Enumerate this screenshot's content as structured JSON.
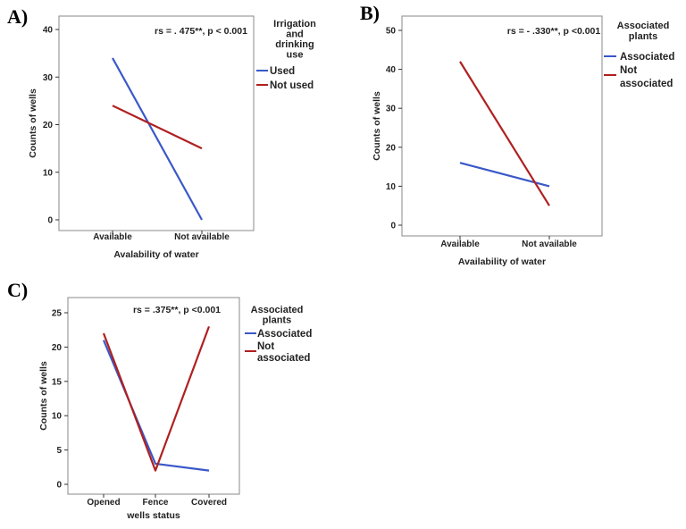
{
  "colors": {
    "blue": "#3a58c8",
    "red": "#b02020",
    "axis": "#333333",
    "frame": "#888888"
  },
  "chart_data": [
    {
      "panel": "A)",
      "type": "line",
      "categories": [
        "Available",
        "Not available"
      ],
      "series": [
        {
          "name": "Used",
          "color": "blue",
          "values": [
            34,
            0
          ]
        },
        {
          "name": "Not used",
          "color": "red",
          "values": [
            24,
            15
          ]
        }
      ],
      "ylim": [
        0,
        40
      ],
      "yticks": [
        "0",
        "10",
        "20",
        "30",
        "40"
      ],
      "xlabel": "Avalability of water",
      "ylabel": "Counts of wells",
      "annotation": "rs = . 475**, p < 0.001",
      "legend_title": [
        "Irrigation",
        "and",
        "drinking",
        "use"
      ]
    },
    {
      "panel": "B)",
      "type": "line",
      "categories": [
        "Available",
        "Not available"
      ],
      "series": [
        {
          "name": "Associated",
          "color": "blue",
          "values": [
            16,
            10
          ]
        },
        {
          "name": "Not associated",
          "label_lines": [
            "Not",
            "associated"
          ],
          "color": "red",
          "values": [
            42,
            5
          ]
        }
      ],
      "ylim": [
        0,
        50
      ],
      "yticks": [
        "0",
        "10",
        "20",
        "30",
        "40",
        "50"
      ],
      "xlabel": "Availability of water",
      "ylabel": "Counts of wells",
      "annotation": "rs = - .330**, p <0.001",
      "legend_title": [
        "Associated",
        "plants"
      ]
    },
    {
      "panel": "C)",
      "type": "line",
      "categories": [
        "Opened",
        "Fence",
        "Covered"
      ],
      "series": [
        {
          "name": "Associated",
          "color": "blue",
          "values": [
            21,
            3,
            2
          ]
        },
        {
          "name": "Not associated",
          "label_lines": [
            "Not",
            "associated"
          ],
          "color": "red",
          "values": [
            22,
            2,
            23
          ]
        }
      ],
      "ylim": [
        0,
        25
      ],
      "yticks": [
        "0",
        "5",
        "10",
        "15",
        "20",
        "25"
      ],
      "xlabel": "wells status",
      "ylabel": "Counts of wells",
      "annotation": "rs = .375**, p <0.001",
      "legend_title": [
        "Associated",
        "plants"
      ]
    }
  ]
}
